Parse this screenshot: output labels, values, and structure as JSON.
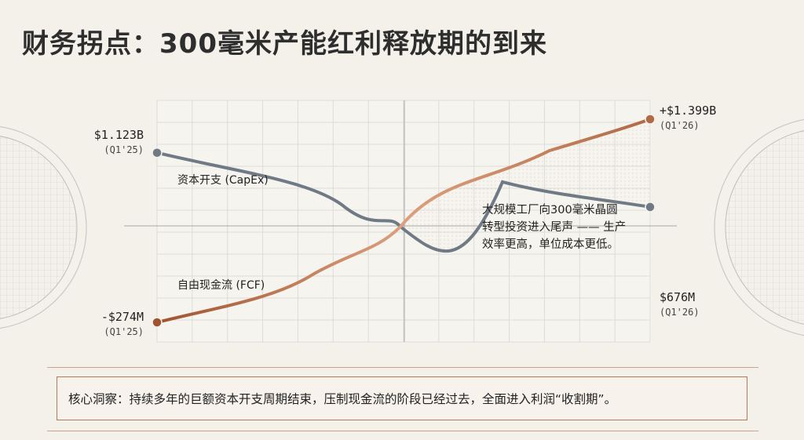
{
  "title": "财务拐点：300毫米产能红利释放期的到来",
  "chart_data": {
    "type": "line",
    "x": [
      0,
      1
    ],
    "series": [
      {
        "name": "资本开支 (CapEx)",
        "values": [
          1123,
          676
        ],
        "start_label": "$1.123B",
        "end_label": "$676M",
        "color": "#6f7a84"
      },
      {
        "name": "自由现金流 (FCF)",
        "values": [
          -274,
          1399
        ],
        "start_label": "-$274M",
        "end_label": "+$1.399B",
        "color": "#b06a45"
      }
    ],
    "start_period": "(Q1'25)",
    "end_period": "(Q1'26)",
    "annotation": [
      "大规模工厂向300毫米晶圆",
      "转型投资进入尾声 —— 生产",
      "效率更高，单位成本更低。"
    ],
    "grid": true
  },
  "insight": "核心洞察：持续多年的巨额资本开支周期结束，压制现金流的阶段已经过去，全面进入利润“收割期”。"
}
